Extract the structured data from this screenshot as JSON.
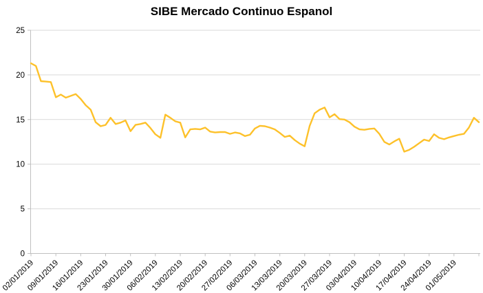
{
  "chart_data": {
    "type": "line",
    "title": "SIBE Mercado Continuo Espanol",
    "xlabel": "",
    "ylabel": "",
    "ylim": [
      0,
      25
    ],
    "yticks": [
      0,
      5,
      10,
      15,
      20,
      25
    ],
    "grid": "horizontal",
    "legend": "none",
    "series_color": "#fdc12a",
    "grid_color": "#d9d9d9",
    "axis_color": "#bfbfbf",
    "text_color": "#000000",
    "x_tick_labels": [
      "02/01/2019",
      "09/01/2019",
      "16/01/2019",
      "23/01/2019",
      "30/01/2019",
      "06/02/2019",
      "13/02/2019",
      "20/02/2019",
      "27/02/2019",
      "06/03/2019",
      "13/03/2019",
      "20/03/2019",
      "27/03/2019",
      "03/04/2019",
      "10/04/2019",
      "17/04/2019",
      "24/04/2019",
      "01/05/2019"
    ],
    "x": [
      "02/01/2019",
      "03/01/2019",
      "04/01/2019",
      "07/01/2019",
      "08/01/2019",
      "09/01/2019",
      "10/01/2019",
      "11/01/2019",
      "14/01/2019",
      "15/01/2019",
      "16/01/2019",
      "17/01/2019",
      "18/01/2019",
      "21/01/2019",
      "22/01/2019",
      "23/01/2019",
      "24/01/2019",
      "25/01/2019",
      "28/01/2019",
      "29/01/2019",
      "30/01/2019",
      "31/01/2019",
      "01/02/2019",
      "04/02/2019",
      "05/02/2019",
      "06/02/2019",
      "07/02/2019",
      "08/02/2019",
      "11/02/2019",
      "12/02/2019",
      "13/02/2019",
      "14/02/2019",
      "15/02/2019",
      "18/02/2019",
      "19/02/2019",
      "20/02/2019",
      "21/02/2019",
      "22/02/2019",
      "25/02/2019",
      "26/02/2019",
      "27/02/2019",
      "28/02/2019",
      "01/03/2019",
      "04/03/2019",
      "05/03/2019",
      "06/03/2019",
      "07/03/2019",
      "08/03/2019",
      "11/03/2019",
      "12/03/2019",
      "13/03/2019",
      "14/03/2019",
      "15/03/2019",
      "18/03/2019",
      "19/03/2019",
      "20/03/2019",
      "21/03/2019",
      "22/03/2019",
      "25/03/2019",
      "26/03/2019",
      "27/03/2019",
      "28/03/2019",
      "29/03/2019",
      "01/04/2019",
      "02/04/2019",
      "03/04/2019",
      "04/04/2019",
      "05/04/2019",
      "08/04/2019",
      "09/04/2019",
      "10/04/2019",
      "11/04/2019",
      "12/04/2019",
      "15/04/2019",
      "16/04/2019",
      "17/04/2019",
      "18/04/2019",
      "19/04/2019",
      "22/04/2019",
      "23/04/2019",
      "24/04/2019",
      "25/04/2019",
      "26/04/2019",
      "29/04/2019",
      "30/04/2019",
      "01/05/2019",
      "02/05/2019",
      "03/05/2019",
      "06/05/2019",
      "07/05/2019",
      "08/05/2019"
    ],
    "values": [
      21.3,
      21.0,
      19.3,
      19.25,
      19.2,
      17.5,
      17.8,
      17.45,
      17.65,
      17.85,
      17.3,
      16.6,
      16.1,
      14.7,
      14.25,
      14.4,
      15.2,
      14.5,
      14.65,
      14.9,
      13.7,
      14.4,
      14.5,
      14.65,
      14.05,
      13.35,
      12.95,
      15.55,
      15.2,
      14.8,
      14.65,
      13.0,
      13.9,
      13.95,
      13.9,
      14.1,
      13.65,
      13.55,
      13.6,
      13.6,
      13.4,
      13.55,
      13.45,
      13.15,
      13.3,
      14.0,
      14.3,
      14.25,
      14.1,
      13.9,
      13.5,
      13.05,
      13.2,
      12.7,
      12.3,
      12.0,
      14.3,
      15.7,
      16.1,
      16.35,
      15.25,
      15.6,
      15.05,
      15.0,
      14.7,
      14.2,
      13.9,
      13.85,
      13.95,
      14.0,
      13.4,
      12.5,
      12.2,
      12.55,
      12.85,
      11.4,
      11.6,
      11.95,
      12.35,
      12.75,
      12.6,
      13.35,
      12.95,
      12.8,
      13.0,
      13.15,
      13.3,
      13.4,
      14.1,
      15.2,
      14.7
    ]
  }
}
